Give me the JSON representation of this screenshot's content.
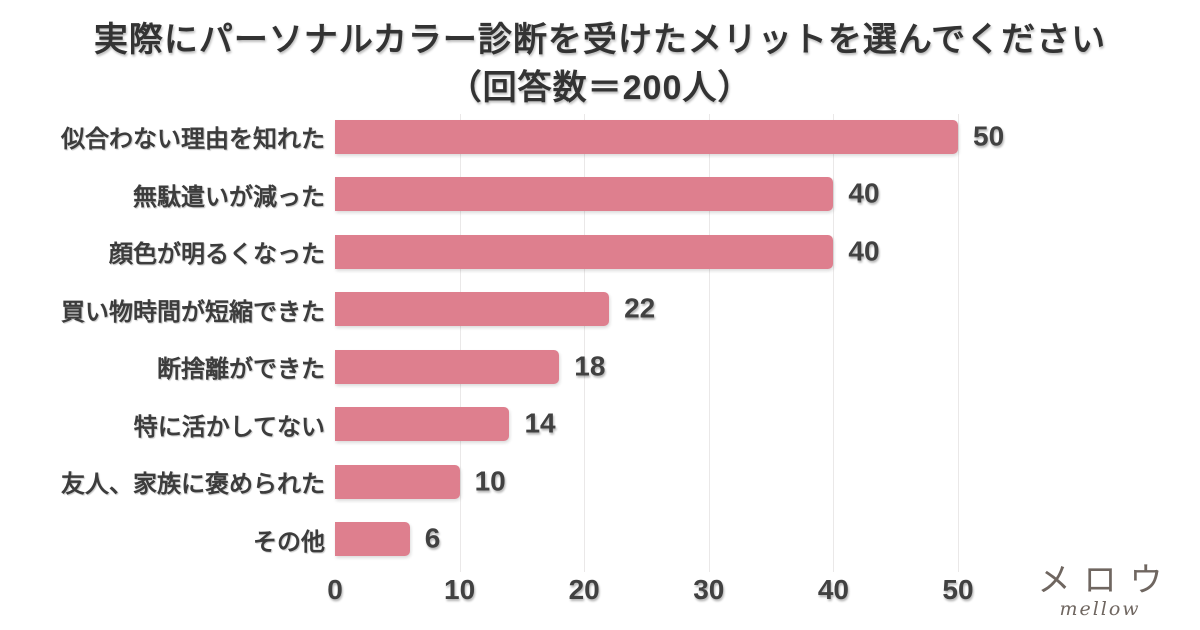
{
  "title": {
    "line1": "実際にパーソナルカラー診断を受けたメリットを選んでください",
    "line2": "（回答数＝200人）"
  },
  "chart_data": {
    "type": "bar",
    "orientation": "horizontal",
    "title": "実際にパーソナルカラー診断を受けたメリットを選んでください（回答数＝200人）",
    "categories": [
      "似合わない理由を知れた",
      "無駄遣いが減った",
      "顔色が明るくなった",
      "買い物時間が短縮できた",
      "断捨離ができた",
      "特に活かしてない",
      "友人、家族に褒められた",
      "その他"
    ],
    "values": [
      50,
      40,
      40,
      22,
      18,
      14,
      10,
      6
    ],
    "xlabel": "",
    "ylabel": "",
    "xlim": [
      0,
      50
    ],
    "xticks": [
      0,
      10,
      20,
      30,
      40,
      50
    ],
    "grid": true,
    "legend": "none",
    "bar_color": "#de7f8e",
    "text_color": "#3c3c3c",
    "grid_color": "#eae8e8",
    "background_color": "#ffffff"
  },
  "logo": {
    "name": "メロウ",
    "subname": "mellow",
    "color": "#6f6660"
  }
}
